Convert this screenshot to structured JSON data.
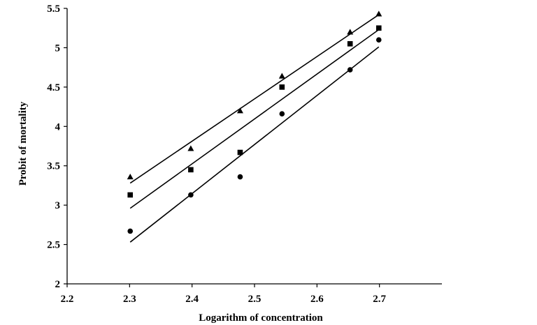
{
  "chart_data": {
    "type": "scatter",
    "title": "",
    "xlabel": "Logarithm of concentration",
    "ylabel": "Probit of mortality",
    "xlim": [
      2.2,
      2.8
    ],
    "ylim": [
      2,
      5.5
    ],
    "x_ticks": [
      "2.2",
      "2.3",
      "2.4",
      "2.5",
      "2.6",
      "2.7"
    ],
    "y_ticks": [
      "2",
      "2.5",
      "3",
      "3.5",
      "4",
      "4.5",
      "5",
      "5.5"
    ],
    "grid": false,
    "legend": "none",
    "series": [
      {
        "marker": "triangle",
        "color": "#000000",
        "points": [
          {
            "x": 2.301,
            "y": 3.36
          },
          {
            "x": 2.398,
            "y": 3.72
          },
          {
            "x": 2.477,
            "y": 4.2
          },
          {
            "x": 2.544,
            "y": 4.64
          },
          {
            "x": 2.653,
            "y": 5.2
          },
          {
            "x": 2.699,
            "y": 5.43
          }
        ],
        "trendline": {
          "x": [
            2.301,
            2.699
          ],
          "y": [
            3.28,
            5.42
          ]
        }
      },
      {
        "marker": "square",
        "color": "#000000",
        "points": [
          {
            "x": 2.301,
            "y": 3.13
          },
          {
            "x": 2.398,
            "y": 3.45
          },
          {
            "x": 2.477,
            "y": 3.67
          },
          {
            "x": 2.544,
            "y": 4.5
          },
          {
            "x": 2.653,
            "y": 5.05
          },
          {
            "x": 2.699,
            "y": 5.25
          }
        ],
        "trendline": {
          "x": [
            2.301,
            2.699
          ],
          "y": [
            2.96,
            5.23
          ]
        }
      },
      {
        "marker": "circle",
        "color": "#000000",
        "points": [
          {
            "x": 2.301,
            "y": 2.67
          },
          {
            "x": 2.398,
            "y": 3.13
          },
          {
            "x": 2.477,
            "y": 3.36
          },
          {
            "x": 2.544,
            "y": 4.16
          },
          {
            "x": 2.653,
            "y": 4.72
          },
          {
            "x": 2.699,
            "y": 5.1
          }
        ],
        "trendline": {
          "x": [
            2.301,
            2.699
          ],
          "y": [
            2.53,
            5.01
          ]
        }
      }
    ]
  }
}
